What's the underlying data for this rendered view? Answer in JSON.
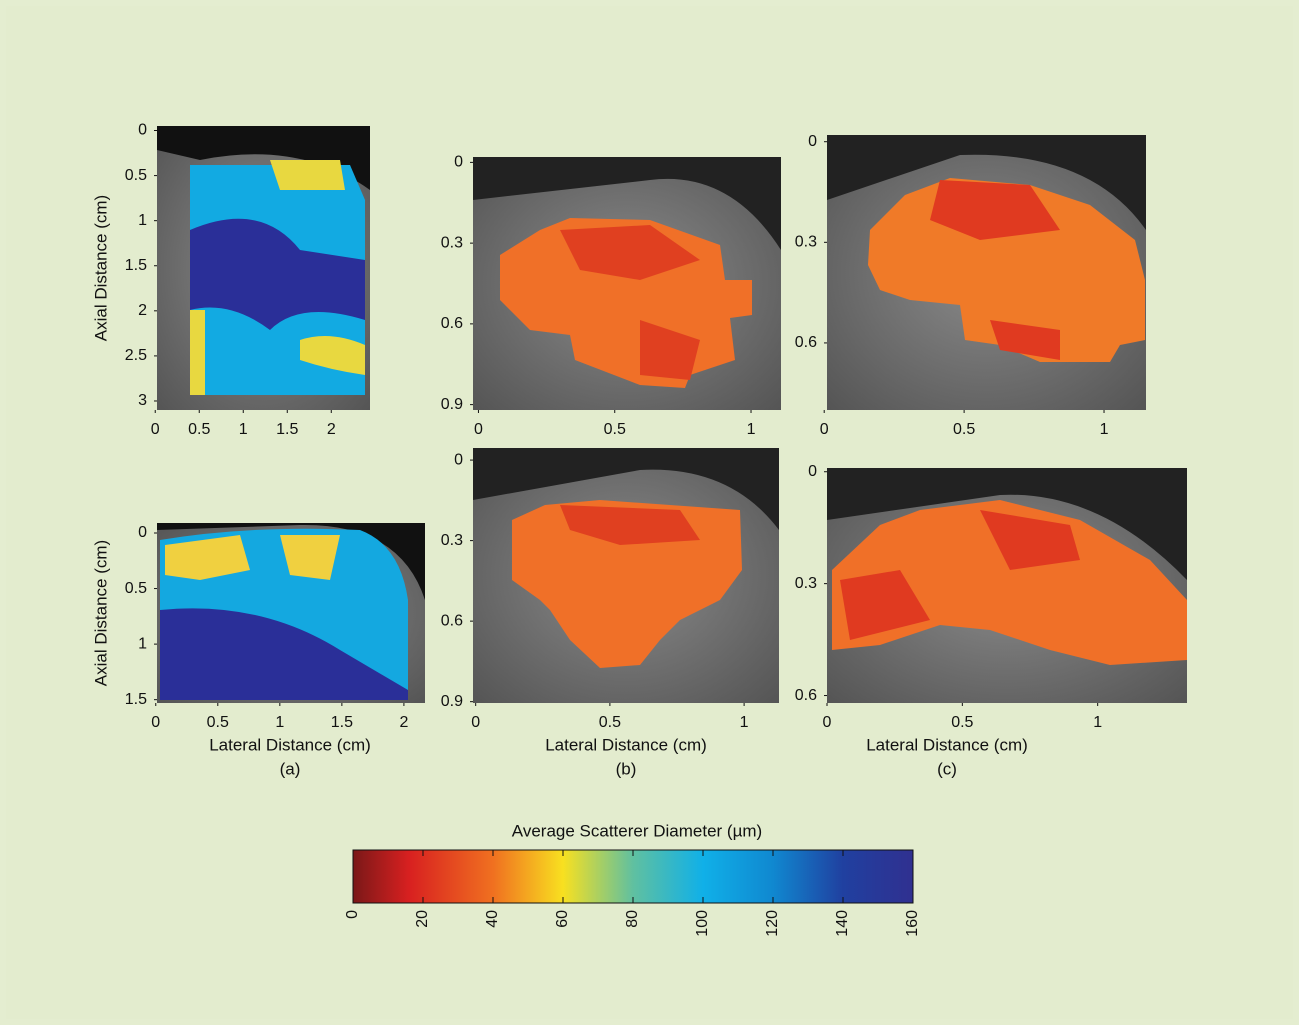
{
  "panels": [
    {
      "xlim": [
        0.02,
        2.44
      ],
      "ylim": [
        -0.05,
        3.1
      ],
      "xticks": [
        0,
        0.5,
        1,
        1.5,
        2
      ],
      "yticks": [
        0,
        0.5,
        1,
        1.5,
        2,
        2.5,
        3
      ],
      "ylabel": "Axial Distance (cm)"
    },
    {
      "xlim": [
        0.01,
        2.17
      ],
      "ylim": [
        -0.09,
        1.53
      ],
      "xticks": [
        0,
        0.5,
        1,
        1.5,
        2
      ],
      "yticks": [
        0,
        0.5,
        1,
        1.5
      ],
      "ylabel": "Axial Distance (cm)",
      "xlabel": "Lateral Distance (cm)",
      "caption": "(a)"
    },
    {
      "xlim": [
        -0.02,
        1.11
      ],
      "ylim": [
        -0.02,
        0.92
      ],
      "xticks": [
        0,
        0.5,
        1
      ],
      "yticks": [
        0,
        0.3,
        0.6,
        0.9
      ]
    },
    {
      "xlim": [
        -0.01,
        1.13
      ],
      "ylim": [
        -0.045,
        0.905
      ],
      "xticks": [
        0,
        0.5,
        1
      ],
      "yticks": [
        0,
        0.3,
        0.6,
        0.9
      ],
      "xlabel": "Lateral Distance (cm)",
      "caption": "(b)"
    },
    {
      "xlim": [
        0.01,
        1.15
      ],
      "ylim": [
        -0.02,
        0.8
      ],
      "xticks": [
        0,
        0.5,
        1
      ],
      "yticks": [
        0,
        0.3,
        0.6
      ]
    },
    {
      "xlim": [
        0,
        1.33
      ],
      "ylim": [
        -0.01,
        0.62
      ],
      "xticks": [
        0,
        0.5,
        1
      ],
      "yticks": [
        0,
        0.3,
        0.6
      ],
      "xlabel": "Lateral Distance (cm)",
      "caption": "(c)"
    }
  ],
  "colorbar": {
    "label": "Average Scatterer Diameter (µm)",
    "lim": [
      0,
      160
    ],
    "ticks": [
      0,
      20,
      40,
      60,
      80,
      100,
      120,
      140,
      160
    ]
  }
}
